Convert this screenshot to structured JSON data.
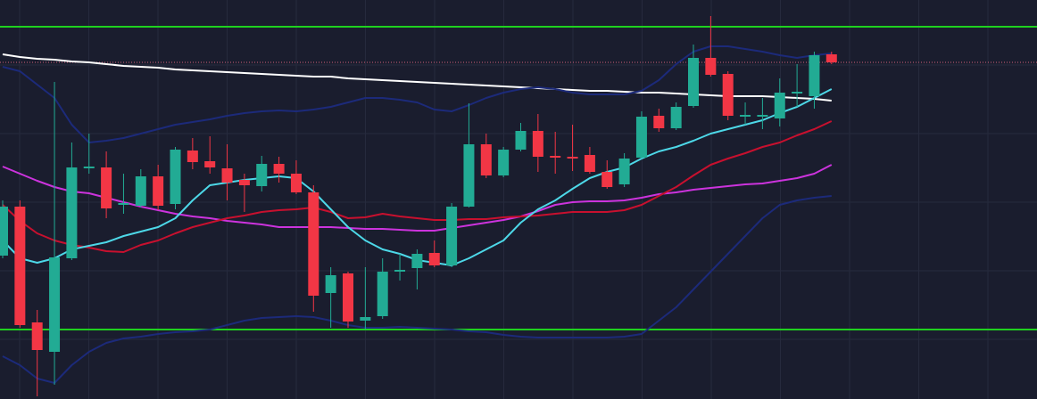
{
  "chart_data": {
    "type": "candlestick",
    "categories": [
      null,
      null,
      null,
      null,
      null,
      null,
      null,
      null,
      null,
      null,
      null,
      null,
      null,
      null,
      null,
      null,
      null,
      null,
      null,
      null,
      null,
      null,
      null,
      null,
      null,
      null,
      null,
      null,
      null,
      null,
      null,
      null,
      null,
      null,
      null,
      null,
      null,
      null,
      null,
      null,
      null,
      null,
      null,
      null,
      null,
      null,
      null,
      null,
      null
    ],
    "open": [
      161,
      216,
      86,
      53,
      158,
      259,
      260,
      218,
      217,
      250,
      219,
      279,
      267,
      259,
      246,
      239,
      264,
      253,
      232,
      119,
      141,
      88,
      93,
      143,
      147,
      164,
      150,
      216,
      286,
      251,
      280,
      301,
      273,
      272,
      274,
      255,
      241,
      271,
      318,
      304,
      329,
      383,
      365,
      317,
      317,
      315,
      343,
      340,
      387
    ],
    "high": [
      223,
      223,
      100,
      356,
      288,
      298,
      278,
      253,
      258,
      263,
      283,
      293,
      295,
      286,
      253,
      273,
      272,
      268,
      240,
      148,
      143,
      148,
      158,
      163,
      168,
      178,
      220,
      332,
      298,
      283,
      310,
      320,
      300,
      308,
      283,
      268,
      276,
      323,
      326,
      333,
      398,
      430,
      368,
      333,
      338,
      360,
      376,
      390,
      390
    ],
    "low": [
      158,
      80,
      3,
      16,
      156,
      253,
      203,
      208,
      215,
      212,
      213,
      258,
      253,
      223,
      210,
      233,
      243,
      230,
      98,
      80,
      80,
      78,
      90,
      133,
      123,
      148,
      148,
      215,
      248,
      249,
      278,
      255,
      253,
      256,
      253,
      236,
      238,
      270,
      300,
      302,
      327,
      362,
      313,
      308,
      303,
      306,
      328,
      326,
      376
    ],
    "close": [
      216,
      83,
      55,
      159,
      260,
      261,
      214,
      220,
      250,
      217,
      280,
      266,
      260,
      243,
      240,
      264,
      253,
      232,
      116,
      139,
      87,
      92,
      143,
      145,
      163,
      150,
      216,
      286,
      251,
      280,
      301,
      272,
      271,
      270,
      255,
      238,
      270,
      317,
      304,
      328,
      383,
      364,
      318,
      319,
      319,
      344,
      345,
      386,
      378
    ],
    "up_color": "#22ab94",
    "down_color": "#f23645",
    "ylim": [
      0,
      448
    ],
    "lines": [
      {
        "color": "#ffffff",
        "values": [
          387,
          384,
          382,
          381,
          379,
          378,
          376,
          374,
          373,
          372,
          370,
          369,
          368,
          367,
          366,
          365,
          364,
          363,
          362,
          362,
          360,
          359,
          358,
          357,
          356,
          355,
          354,
          353,
          352,
          351,
          350,
          349,
          348,
          347,
          346,
          346,
          345,
          344,
          344,
          343,
          342,
          341,
          340,
          340,
          340,
          339,
          338,
          337,
          335
        ]
      },
      {
        "color": "#1c2a7a",
        "values": [
          373,
          368,
          353,
          338,
          308,
          288,
          290,
          293,
          298,
          303,
          308,
          311,
          314,
          318,
          321,
          323,
          324,
          323,
          325,
          328,
          333,
          338,
          338,
          336,
          333,
          325,
          323,
          330,
          338,
          344,
          348,
          350,
          348,
          344,
          342,
          342,
          342,
          346,
          358,
          376,
          390,
          396,
          396,
          393,
          390,
          386,
          383,
          386,
          388
        ]
      },
      {
        "color": "#1c2a7a",
        "values": [
          48,
          38,
          23,
          18,
          38,
          53,
          63,
          68,
          70,
          73,
          75,
          76,
          78,
          83,
          88,
          91,
          92,
          93,
          92,
          88,
          83,
          80,
          80,
          81,
          80,
          79,
          78,
          76,
          75,
          72,
          70,
          69,
          69,
          69,
          69,
          69,
          70,
          73,
          88,
          103,
          123,
          143,
          163,
          183,
          203,
          218,
          223,
          226,
          228
        ]
      },
      {
        "color": "#cc33dd",
        "values": [
          261,
          253,
          245,
          238,
          233,
          231,
          226,
          221,
          216,
          212,
          208,
          205,
          203,
          200,
          198,
          196,
          193,
          193,
          193,
          193,
          192,
          191,
          191,
          190,
          189,
          189,
          192,
          195,
          198,
          201,
          205,
          211,
          218,
          221,
          222,
          222,
          223,
          226,
          230,
          232,
          235,
          237,
          239,
          241,
          242,
          245,
          248,
          253,
          263
        ]
      },
      {
        "color": "#c8102e",
        "values": [
          218,
          200,
          186,
          178,
          173,
          170,
          166,
          165,
          173,
          178,
          186,
          193,
          198,
          203,
          206,
          210,
          212,
          213,
          215,
          210,
          203,
          204,
          208,
          205,
          203,
          201,
          201,
          202,
          202,
          204,
          205,
          206,
          208,
          210,
          210,
          210,
          212,
          218,
          228,
          238,
          251,
          263,
          270,
          276,
          283,
          288,
          296,
          303,
          312
        ]
      },
      {
        "color": "#4dd8e8",
        "values": [
          178,
          158,
          153,
          158,
          168,
          172,
          176,
          183,
          188,
          193,
          203,
          223,
          240,
          243,
          246,
          248,
          250,
          248,
          233,
          213,
          193,
          178,
          168,
          163,
          156,
          153,
          150,
          158,
          168,
          178,
          198,
          213,
          223,
          236,
          248,
          255,
          260,
          270,
          278,
          283,
          290,
          298,
          303,
          308,
          313,
          321,
          328,
          338,
          348
        ]
      }
    ],
    "levels": [
      {
        "value": 418,
        "color": "#1fd11f",
        "style": "solid"
      },
      {
        "value": 78,
        "color": "#1fd11f",
        "style": "solid"
      },
      {
        "value": 378,
        "color": "#d0607a",
        "style": "dotted"
      }
    ]
  }
}
